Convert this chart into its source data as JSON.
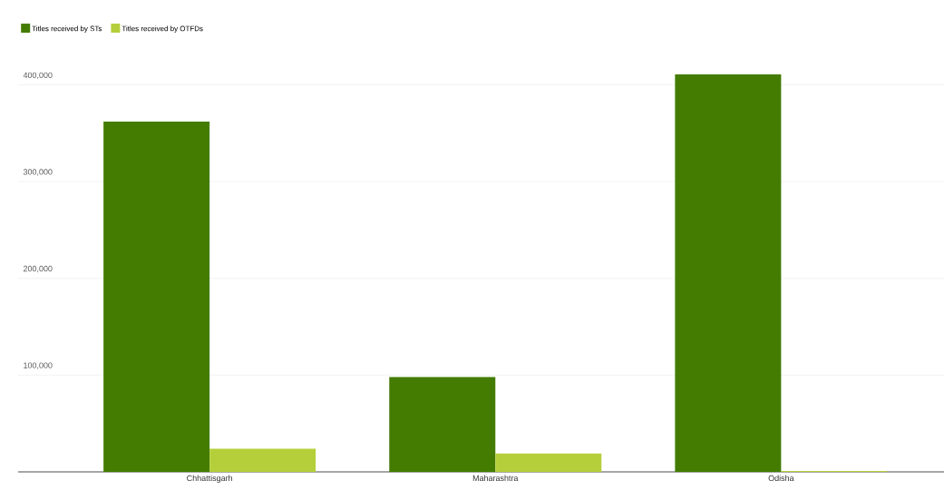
{
  "chart_data": {
    "type": "bar",
    "categories": [
      "Chhattisgarh",
      "Maharashtra",
      "Odisha"
    ],
    "series": [
      {
        "name": "Titles received by STs",
        "color": "#437c00",
        "values": [
          362000,
          98000,
          411000
        ]
      },
      {
        "name": "Titles received by OTFDs",
        "color": "#b5cf3a",
        "values": [
          24000,
          19000,
          1000
        ]
      }
    ],
    "ylim": [
      0,
      411000
    ],
    "yticks": [
      {
        "value": 100000,
        "label": "100,000"
      },
      {
        "value": 200000,
        "label": "200,000"
      },
      {
        "value": 300000,
        "label": "300,000"
      },
      {
        "value": 400000,
        "label": "400,000"
      }
    ],
    "grid": "y",
    "legend": "top left"
  }
}
